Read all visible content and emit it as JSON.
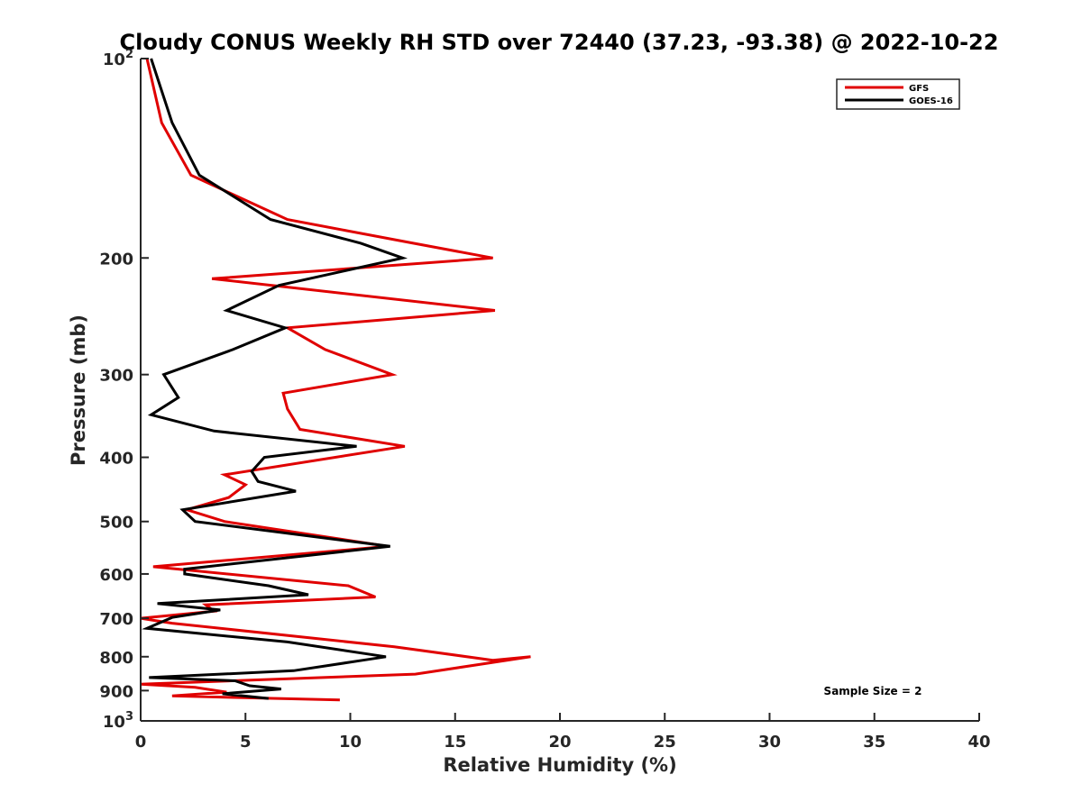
{
  "chart_data": {
    "type": "line",
    "title": "Cloudy CONUS Weekly RH STD over 72440 (37.23, -93.38) @ 2022-10-22",
    "xlabel": "Relative Humidity (%)",
    "ylabel": "Pressure (mb)",
    "xlim": [
      0,
      40
    ],
    "ylim": [
      100,
      1000
    ],
    "y_scale": "log",
    "y_reversed": true,
    "grid": false,
    "legend_position": "top-right",
    "x_ticks": [
      0,
      5,
      10,
      15,
      20,
      25,
      30,
      35,
      40
    ],
    "x_tick_labels": [
      "0",
      "5",
      "10",
      "15",
      "20",
      "25",
      "30",
      "35",
      "40"
    ],
    "y_ticks": [
      100,
      200,
      300,
      400,
      500,
      600,
      700,
      800,
      900,
      1000
    ],
    "y_tick_labels": [
      "10^2",
      "200",
      "300",
      "400",
      "500",
      "600",
      "700",
      "800",
      "900",
      "10^3"
    ],
    "annotation": "Sample Size = 2",
    "series": [
      {
        "name": "GFS",
        "color": "#e00000",
        "points": [
          [
            0.3,
            100
          ],
          [
            1.0,
            125
          ],
          [
            2.4,
            150
          ],
          [
            7.0,
            175
          ],
          [
            13.0,
            190
          ],
          [
            16.8,
            200
          ],
          [
            3.4,
            215
          ],
          [
            16.9,
            240
          ],
          [
            7.0,
            255
          ],
          [
            8.8,
            275
          ],
          [
            12.0,
            300
          ],
          [
            6.8,
            320
          ],
          [
            7.0,
            338
          ],
          [
            7.6,
            363
          ],
          [
            12.6,
            385
          ],
          [
            4.0,
            425
          ],
          [
            5.0,
            440
          ],
          [
            4.2,
            460
          ],
          [
            2.2,
            480
          ],
          [
            4.0,
            500
          ],
          [
            11.8,
            545
          ],
          [
            0.6,
            585
          ],
          [
            9.9,
            625
          ],
          [
            11.2,
            650
          ],
          [
            3.1,
            668
          ],
          [
            3.5,
            683
          ],
          [
            0,
            700
          ],
          [
            1.5,
            712
          ],
          [
            12.1,
            773
          ],
          [
            16.8,
            810
          ],
          [
            18.6,
            800
          ],
          [
            13.1,
            850
          ],
          [
            0,
            880
          ],
          [
            2.6,
            890
          ],
          [
            4.1,
            905
          ],
          [
            1.5,
            917
          ],
          [
            9.5,
            930
          ]
        ]
      },
      {
        "name": "GOES-16",
        "color": "#000000",
        "points": [
          [
            0.5,
            100
          ],
          [
            1.5,
            125
          ],
          [
            2.8,
            150
          ],
          [
            6.2,
            175
          ],
          [
            10.5,
            190
          ],
          [
            12.5,
            200
          ],
          [
            6.6,
            220
          ],
          [
            4.1,
            240
          ],
          [
            6.9,
            255
          ],
          [
            4.4,
            275
          ],
          [
            1.1,
            300
          ],
          [
            1.8,
            325
          ],
          [
            0.5,
            345
          ],
          [
            3.5,
            365
          ],
          [
            10.3,
            385
          ],
          [
            5.9,
            400
          ],
          [
            5.3,
            420
          ],
          [
            5.6,
            435
          ],
          [
            7.4,
            450
          ],
          [
            2.0,
            480
          ],
          [
            2.6,
            500
          ],
          [
            11.9,
            545
          ],
          [
            2.1,
            590
          ],
          [
            2.1,
            600
          ],
          [
            6.1,
            625
          ],
          [
            8.0,
            645
          ],
          [
            0.8,
            665
          ],
          [
            3.8,
            680
          ],
          [
            1.5,
            698
          ],
          [
            0.3,
            725
          ],
          [
            7.0,
            760
          ],
          [
            11.7,
            800
          ],
          [
            10.6,
            810
          ],
          [
            7.3,
            840
          ],
          [
            0.4,
            860
          ],
          [
            4.5,
            870
          ],
          [
            5.2,
            885
          ],
          [
            6.7,
            895
          ],
          [
            3.9,
            910
          ],
          [
            6.1,
            925
          ]
        ]
      }
    ]
  }
}
